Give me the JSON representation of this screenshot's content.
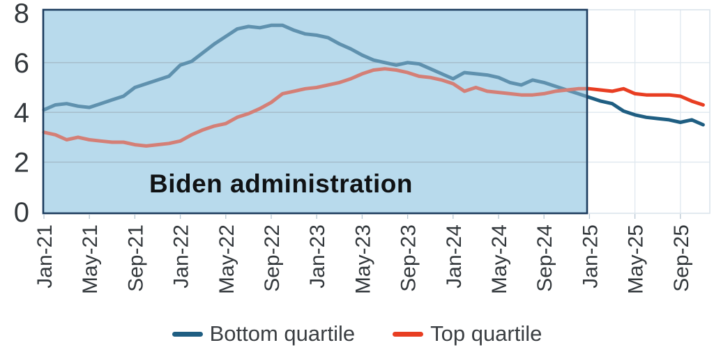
{
  "chart_data": {
    "type": "line",
    "title": "",
    "xlabel": "",
    "ylabel": "",
    "ylim": [
      0,
      8
    ],
    "yticks": [
      "0",
      "2",
      "4",
      "6",
      "8"
    ],
    "x_tick_labels": [
      "Jan-21",
      "May-21",
      "Sep-21",
      "Jan-22",
      "May-22",
      "Sep-22",
      "Jan-23",
      "May-23",
      "Sep-23",
      "Jan-24",
      "May-24",
      "Sep-24",
      "Jan-25",
      "May-25",
      "Sep-25"
    ],
    "x": [
      "Jan-21",
      "Feb-21",
      "Mar-21",
      "Apr-21",
      "May-21",
      "Jun-21",
      "Jul-21",
      "Aug-21",
      "Sep-21",
      "Oct-21",
      "Nov-21",
      "Dec-21",
      "Jan-22",
      "Feb-22",
      "Mar-22",
      "Apr-22",
      "May-22",
      "Jun-22",
      "Jul-22",
      "Aug-22",
      "Sep-22",
      "Oct-22",
      "Nov-22",
      "Dec-22",
      "Jan-23",
      "Feb-23",
      "Mar-23",
      "Apr-23",
      "May-23",
      "Jun-23",
      "Jul-23",
      "Aug-23",
      "Sep-23",
      "Oct-23",
      "Nov-23",
      "Dec-23",
      "Jan-24",
      "Feb-24",
      "Mar-24",
      "Apr-24",
      "May-24",
      "Jun-24",
      "Jul-24",
      "Aug-24",
      "Sep-24",
      "Oct-24",
      "Nov-24",
      "Dec-24",
      "Jan-25",
      "Feb-25",
      "Mar-25",
      "Apr-25",
      "May-25",
      "Jun-25",
      "Jul-25",
      "Aug-25",
      "Sep-25",
      "Oct-25",
      "Nov-25"
    ],
    "series": [
      {
        "name": "Bottom quartile",
        "color": "#1f5e82",
        "values": [
          4.1,
          4.3,
          4.35,
          4.25,
          4.2,
          4.35,
          4.5,
          4.65,
          5.0,
          5.15,
          5.3,
          5.45,
          5.9,
          6.05,
          6.4,
          6.75,
          7.05,
          7.35,
          7.45,
          7.4,
          7.5,
          7.5,
          7.3,
          7.15,
          7.1,
          7.0,
          6.75,
          6.55,
          6.3,
          6.1,
          6.0,
          5.9,
          6.0,
          5.95,
          5.75,
          5.55,
          5.35,
          5.6,
          5.55,
          5.5,
          5.4,
          5.2,
          5.1,
          5.3,
          5.2,
          5.05,
          4.9,
          4.75,
          4.6,
          4.45,
          4.35,
          4.05,
          3.9,
          3.8,
          3.75,
          3.7,
          3.6,
          3.7,
          3.5
        ]
      },
      {
        "name": "Top quartile",
        "color": "#e83e22",
        "values": [
          3.2,
          3.1,
          2.9,
          3.0,
          2.9,
          2.85,
          2.8,
          2.8,
          2.7,
          2.65,
          2.7,
          2.75,
          2.85,
          3.1,
          3.3,
          3.45,
          3.55,
          3.8,
          3.95,
          4.15,
          4.4,
          4.75,
          4.85,
          4.95,
          5.0,
          5.1,
          5.2,
          5.35,
          5.55,
          5.7,
          5.75,
          5.7,
          5.6,
          5.45,
          5.4,
          5.3,
          5.15,
          4.85,
          5.0,
          4.85,
          4.8,
          4.75,
          4.7,
          4.7,
          4.75,
          4.85,
          4.9,
          4.95,
          4.95,
          4.9,
          4.85,
          4.95,
          4.75,
          4.7,
          4.7,
          4.7,
          4.65,
          4.45,
          4.3
        ]
      }
    ],
    "grid": "horizontal",
    "legend_position": "bottom",
    "annotation": {
      "text": "Biden administration",
      "region_from": "Jan-21",
      "region_to": "Jan-25",
      "region_fill": "#b9dbec",
      "region_border": "#1c3c5e"
    }
  },
  "colors": {
    "background": "#ffffff",
    "grid_inside": "#94a3ad",
    "grid_outside": "#dfe8ef",
    "plot_border": "#d8e2ea",
    "axis_text": "#33383c",
    "tick": "#b6c6d2",
    "region_overlay": "rgba(184,218,235,0.42)"
  }
}
